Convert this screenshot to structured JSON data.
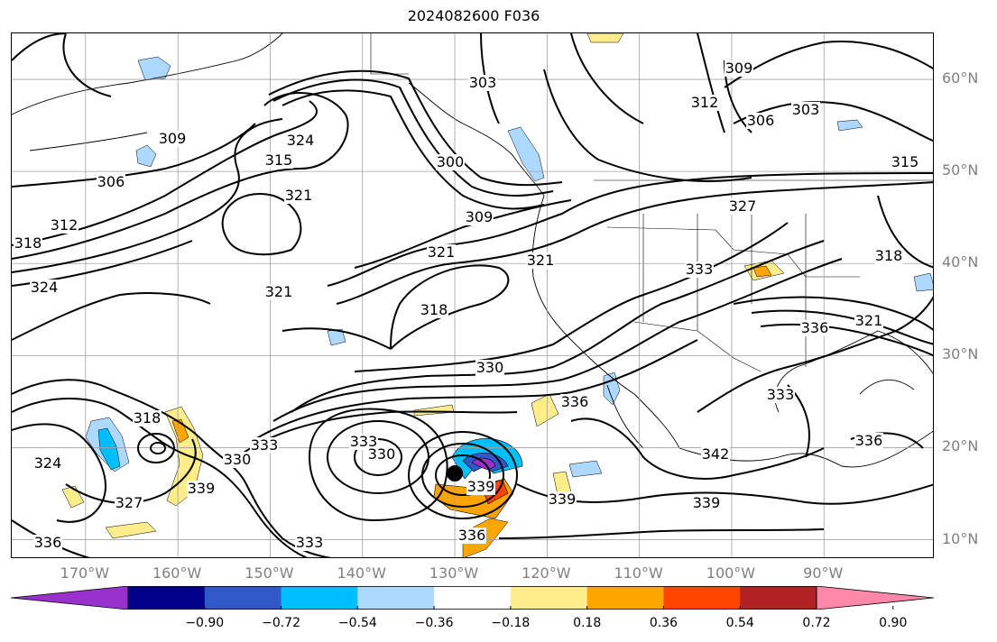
{
  "title": "2024082600 F036",
  "map": {
    "projection": "plate-carree",
    "lon_range": [
      -178,
      -78
    ],
    "lat_range": [
      7.9,
      65
    ],
    "gridlines": true,
    "lat_labels": [
      "60°N",
      "50°N",
      "40°N",
      "30°N",
      "20°N",
      "10°N"
    ],
    "lon_labels": [
      "170°W",
      "160°W",
      "150°W",
      "140°W",
      "130°W",
      "120°W",
      "110°W",
      "100°W",
      "90°W"
    ],
    "contour_color": "#000000",
    "contour_labels": [
      "318",
      "312",
      "306",
      "309",
      "315",
      "324",
      "321",
      "303",
      "300",
      "309",
      "321",
      "318",
      "321",
      "330",
      "309",
      "312",
      "306",
      "303",
      "315",
      "327",
      "333",
      "321",
      "321",
      "336",
      "333",
      "342",
      "339",
      "339",
      "339",
      "336",
      "330",
      "333",
      "336",
      "339",
      "327",
      "324",
      "336",
      "333",
      "318",
      "330",
      "333",
      "336",
      "318",
      "324"
    ],
    "storm_center_lon": -130.0,
    "storm_center_lat": 17.2
  },
  "colorbar": {
    "ticks": [
      "−0.90",
      "−0.72",
      "−0.54",
      "−0.36",
      "−0.18",
      "0.18",
      "0.36",
      "0.54",
      "0.72",
      "0.90"
    ],
    "colors": [
      "#9932cc",
      "#00008b",
      "#3158c8",
      "#00bfff",
      "#add8ff",
      "#ffffff",
      "#ffec8b",
      "#ffa500",
      "#ff4500",
      "#b22222",
      "#ff88aa"
    ],
    "extend": "both"
  }
}
